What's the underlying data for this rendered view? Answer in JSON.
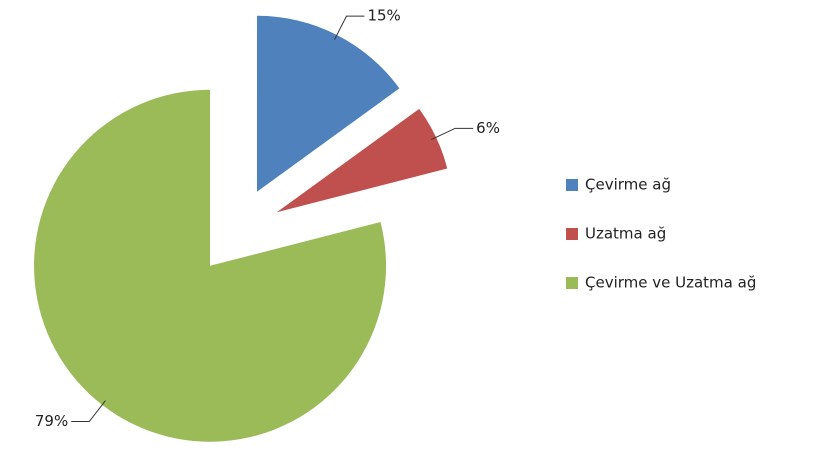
{
  "chart_data": {
    "type": "pie",
    "categories": [
      "Çevirme ağ",
      "Uzatma ağ",
      "Çevirme ve Uzatma ağ"
    ],
    "values": [
      15,
      6,
      79
    ],
    "value_labels": [
      "15%",
      "6%",
      "79%"
    ],
    "colors": [
      "#4f81bd",
      "#c0504d",
      "#9bbb59"
    ],
    "legend": "right"
  }
}
